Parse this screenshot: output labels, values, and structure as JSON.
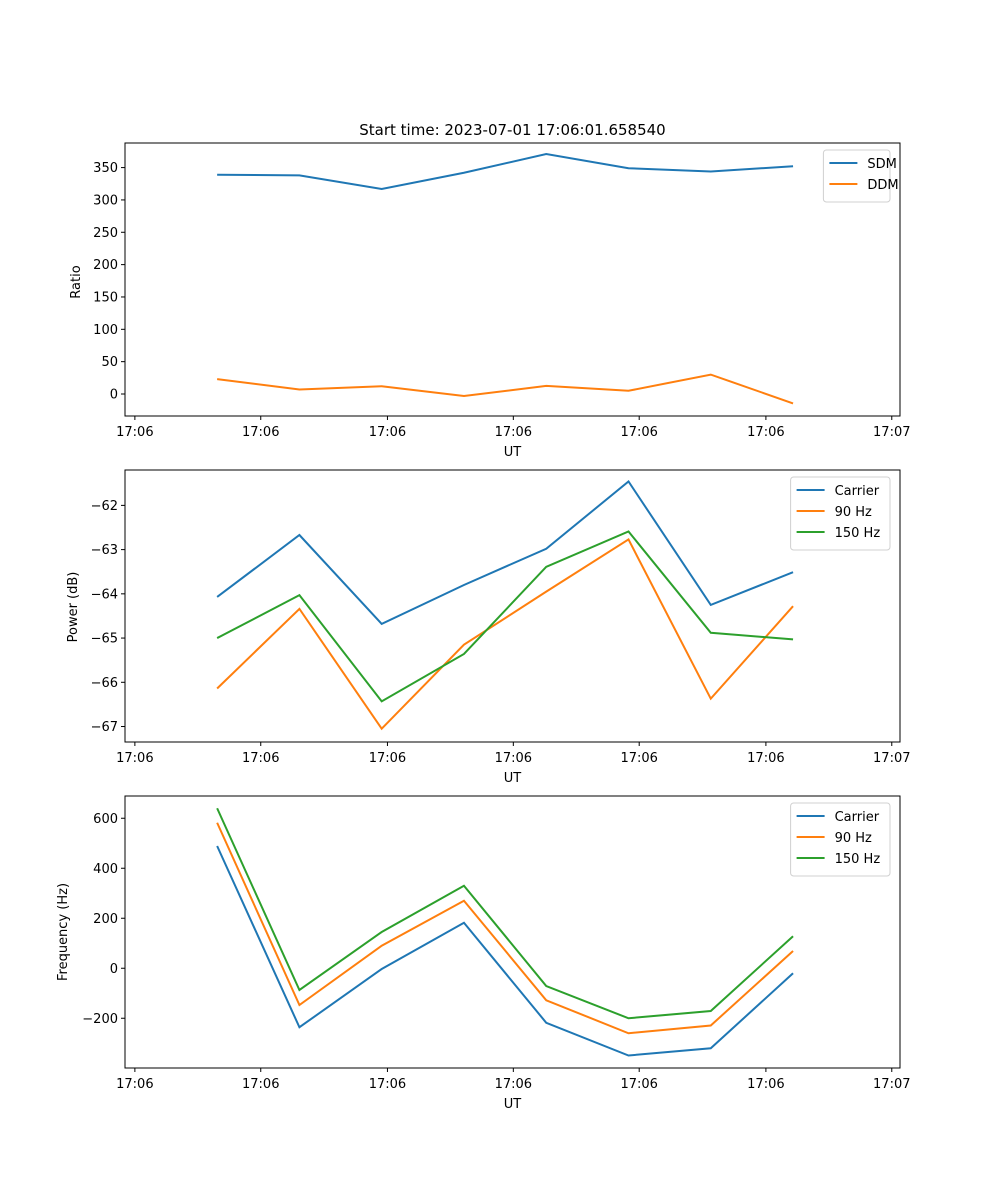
{
  "chart_data": [
    {
      "type": "line",
      "title": "Start time: 2023-07-01 17:06:01.658540",
      "xlabel": "UT",
      "ylabel": "Ratio",
      "x_tick_labels": [
        "17:06",
        "17:06",
        "17:06",
        "17:06",
        "17:06",
        "17:06",
        "17:07"
      ],
      "x": [
        1,
        2,
        3,
        4,
        5,
        6,
        7,
        8
      ],
      "xlim": [
        -0.12,
        9.3
      ],
      "x_ticks": [
        0,
        1.53,
        3.07,
        4.6,
        6.13,
        7.67,
        9.2
      ],
      "ylim": [
        -34,
        388
      ],
      "y_ticks": [
        0,
        50,
        100,
        150,
        200,
        250,
        300,
        350
      ],
      "legend": "top-right",
      "grid": false,
      "series": [
        {
          "name": "SDM",
          "color": "#1f77b4",
          "values": [
            339,
            338,
            317,
            342,
            371,
            349,
            344,
            352
          ]
        },
        {
          "name": "DDM",
          "color": "#ff7f0e",
          "values": [
            23,
            7,
            12,
            -3,
            12.5,
            5,
            30,
            -14.5
          ]
        }
      ]
    },
    {
      "type": "line",
      "title": "",
      "xlabel": "UT",
      "ylabel": "Power (dB)",
      "x_tick_labels": [
        "17:06",
        "17:06",
        "17:06",
        "17:06",
        "17:06",
        "17:06",
        "17:07"
      ],
      "x": [
        1,
        2,
        3,
        4,
        5,
        6,
        7,
        8
      ],
      "xlim": [
        -0.12,
        9.3
      ],
      "x_ticks": [
        0,
        1.53,
        3.07,
        4.6,
        6.13,
        7.67,
        9.2
      ],
      "ylim": [
        -67.35,
        -61.2
      ],
      "y_ticks": [
        -67,
        -66,
        -65,
        -64,
        -63,
        -62
      ],
      "y_tick_labels": [
        "−67",
        "−66",
        "−65",
        "−64",
        "−63",
        "−62"
      ],
      "legend": "top-right",
      "grid": false,
      "series": [
        {
          "name": "Carrier",
          "color": "#1f77b4",
          "values": [
            -64.07,
            -62.67,
            -64.68,
            -63.8,
            -62.98,
            -61.46,
            -64.25,
            -63.51
          ]
        },
        {
          "name": "90 Hz",
          "color": "#ff7f0e",
          "values": [
            -66.14,
            -64.34,
            -67.05,
            -65.15,
            -63.95,
            -62.77,
            -66.37,
            -64.28
          ]
        },
        {
          "name": "150 Hz",
          "color": "#2ca02c",
          "values": [
            -65.0,
            -64.03,
            -66.43,
            -65.36,
            -63.39,
            -62.59,
            -64.88,
            -65.03
          ]
        }
      ]
    },
    {
      "type": "line",
      "title": "",
      "xlabel": "UT",
      "ylabel": "Frequency (Hz)",
      "x_tick_labels": [
        "17:06",
        "17:06",
        "17:06",
        "17:06",
        "17:06",
        "17:06",
        "17:07"
      ],
      "x": [
        1,
        2,
        3,
        4,
        5,
        6,
        7,
        8
      ],
      "xlim": [
        -0.12,
        9.3
      ],
      "x_ticks": [
        0,
        1.53,
        3.07,
        4.6,
        6.13,
        7.67,
        9.2
      ],
      "ylim": [
        -399,
        689
      ],
      "y_ticks": [
        -200,
        0,
        200,
        400,
        600
      ],
      "y_tick_labels": [
        "−200",
        "0",
        "200",
        "400",
        "600"
      ],
      "legend": "top-right",
      "grid": false,
      "series": [
        {
          "name": "Carrier",
          "color": "#1f77b4",
          "values": [
            489,
            -236,
            -3,
            182,
            -218,
            -349,
            -320,
            -20
          ]
        },
        {
          "name": "90 Hz",
          "color": "#ff7f0e",
          "values": [
            582,
            -147,
            90,
            270,
            -128,
            -260,
            -229,
            69
          ]
        },
        {
          "name": "150 Hz",
          "color": "#2ca02c",
          "values": [
            640,
            -87,
            145,
            330,
            -71,
            -200,
            -171,
            128
          ]
        }
      ]
    }
  ]
}
